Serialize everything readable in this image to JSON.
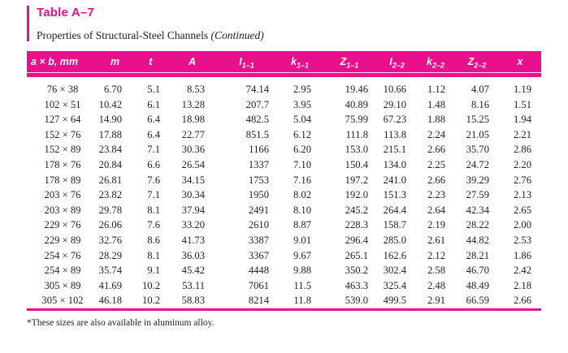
{
  "page": {
    "title": "Table A–7",
    "subtitle": "Properties of Structural-Steel Channels",
    "subtitle_continued": "(Continued)",
    "footnote": "*These sizes are also available in aluminum alloy."
  },
  "colors": {
    "accent_pink": "#E8108C",
    "text": "#231F20",
    "header_text": "#FFFFFF",
    "background": "#FFFFFF"
  },
  "table": {
    "headers": [
      {
        "main": "a × b, mm"
      },
      {
        "main": "m"
      },
      {
        "main": "t"
      },
      {
        "main": "A"
      },
      {
        "main": "I",
        "sub": "1–1"
      },
      {
        "main": "k",
        "sub": "1–1"
      },
      {
        "main": "Z",
        "sub": "1–1"
      },
      {
        "main": "I",
        "sub": "2–2"
      },
      {
        "main": "k",
        "sub": "2–2"
      },
      {
        "main": "Z",
        "sub": "2–2"
      },
      {
        "main": "x"
      }
    ],
    "rows": [
      [
        "76 × 38",
        "6.70",
        "5.1",
        "8.53",
        "74.14",
        "2.95",
        "19.46",
        "10.66",
        "1.12",
        "4.07",
        "1.19"
      ],
      [
        "102 × 51",
        "10.42",
        "6.1",
        "13.28",
        "207.7",
        "3.95",
        "40.89",
        "29.10",
        "1.48",
        "8.16",
        "1.51"
      ],
      [
        "127 × 64",
        "14.90",
        "6.4",
        "18.98",
        "482.5",
        "5.04",
        "75.99",
        "67.23",
        "1.88",
        "15.25",
        "1.94"
      ],
      [
        "152 × 76",
        "17.88",
        "6.4",
        "22.77",
        "851.5",
        "6.12",
        "111.8",
        "113.8",
        "2.24",
        "21.05",
        "2.21"
      ],
      [
        "152 × 89",
        "23.84",
        "7.1",
        "30.36",
        "1166",
        "6.20",
        "153.0",
        "215.1",
        "2.66",
        "35.70",
        "2.86"
      ],
      [
        "178 × 76",
        "20.84",
        "6.6",
        "26.54",
        "1337",
        "7.10",
        "150.4",
        "134.0",
        "2.25",
        "24.72",
        "2.20"
      ],
      [
        "178 × 89",
        "26.81",
        "7.6",
        "34.15",
        "1753",
        "7.16",
        "197.2",
        "241.0",
        "2.66",
        "39.29",
        "2.76"
      ],
      [
        "203 × 76",
        "23.82",
        "7.1",
        "30.34",
        "1950",
        "8.02",
        "192.0",
        "151.3",
        "2.23",
        "27.59",
        "2.13"
      ],
      [
        "203 × 89",
        "29.78",
        "8.1",
        "37.94",
        "2491",
        "8.10",
        "245.2",
        "264.4",
        "2.64",
        "42.34",
        "2.65"
      ],
      [
        "229 × 76",
        "26.06",
        "7.6",
        "33.20",
        "2610",
        "8.87",
        "228.3",
        "158.7",
        "2.19",
        "28.22",
        "2.00"
      ],
      [
        "229 × 89",
        "32.76",
        "8.6",
        "41.73",
        "3387",
        "9.01",
        "296.4",
        "285.0",
        "2.61",
        "44.82",
        "2.53"
      ],
      [
        "254 × 76",
        "28.29",
        "8.1",
        "36.03",
        "3367",
        "9.67",
        "265.1",
        "162.6",
        "2.12",
        "28.21",
        "1.86"
      ],
      [
        "254 × 89",
        "35.74",
        "9.1",
        "45.42",
        "4448",
        "9.88",
        "350.2",
        "302.4",
        "2.58",
        "46.70",
        "2.42"
      ],
      [
        "305 × 89",
        "41.69",
        "10.2",
        "53.11",
        "7061",
        "11.5",
        "463.3",
        "325.4",
        "2.48",
        "48.49",
        "2.18"
      ],
      [
        "305 × 102",
        "46.18",
        "10.2",
        "58.83",
        "8214",
        "11.8",
        "539.0",
        "499.5",
        "2.91",
        "66.59",
        "2.66"
      ]
    ]
  }
}
